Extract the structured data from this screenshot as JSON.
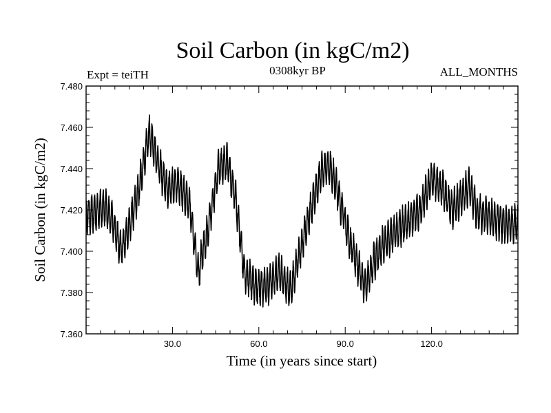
{
  "chart_data": {
    "type": "line",
    "title": "Soil Carbon (in kgC/m2)",
    "subtitle": "0308kyr BP",
    "left_label": "Expt = teiTH",
    "right_label": "ALL_MONTHS",
    "xlabel": "Time (in years since start)",
    "ylabel": "Soil Carbon (in kgC/m2)",
    "xlim": [
      0,
      150
    ],
    "ylim": [
      7.36,
      7.48
    ],
    "x_ticks": [
      30,
      60,
      90,
      120
    ],
    "x_tick_labels": [
      "30.0",
      "60.0",
      "90.0",
      "120.0"
    ],
    "y_ticks": [
      7.36,
      7.38,
      7.4,
      7.42,
      7.44,
      7.46,
      7.48
    ],
    "y_tick_labels": [
      "7.360",
      "7.380",
      "7.400",
      "7.420",
      "7.440",
      "7.460",
      "7.480"
    ],
    "series_description": "monthly values, seasonal oscillation superimposed on slow variability",
    "seasonal_amplitude": 0.016,
    "trend_x": [
      0,
      3,
      6,
      9,
      12,
      15,
      18,
      22,
      25,
      28,
      32,
      36,
      39,
      42,
      46,
      49,
      52,
      55,
      59,
      63,
      67,
      71,
      74,
      78,
      82,
      85,
      88,
      92,
      97,
      100,
      104,
      108,
      112,
      116,
      120,
      124,
      127,
      130,
      133,
      136,
      139,
      142,
      146,
      150
    ],
    "trend_y": [
      7.418,
      7.418,
      7.422,
      7.416,
      7.4,
      7.412,
      7.428,
      7.458,
      7.443,
      7.43,
      7.433,
      7.422,
      7.39,
      7.408,
      7.44,
      7.443,
      7.425,
      7.39,
      7.383,
      7.383,
      7.39,
      7.381,
      7.398,
      7.42,
      7.44,
      7.44,
      7.425,
      7.403,
      7.382,
      7.395,
      7.405,
      7.41,
      7.415,
      7.42,
      7.435,
      7.43,
      7.42,
      7.425,
      7.432,
      7.418,
      7.418,
      7.415,
      7.413,
      7.413
    ]
  }
}
